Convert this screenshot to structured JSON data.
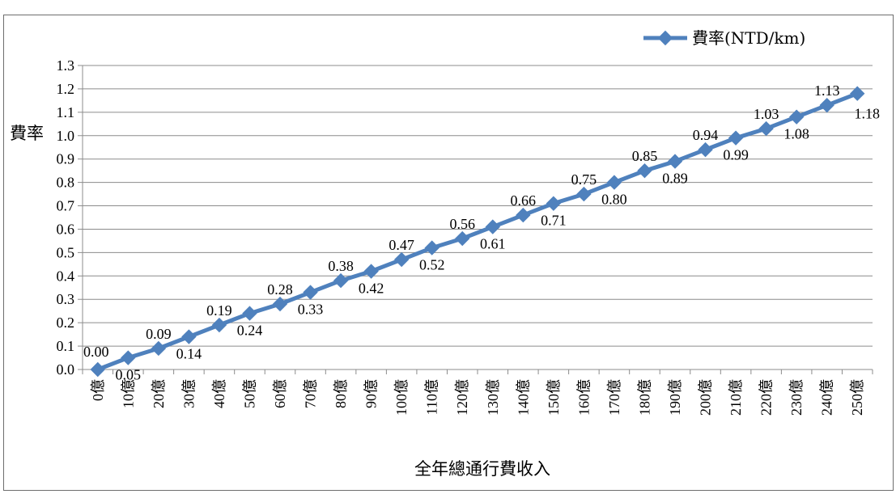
{
  "chart_data": {
    "type": "line",
    "title": "",
    "xlabel": "全年總通行費收入",
    "ylabel": "費率",
    "ylim": [
      0,
      1.3
    ],
    "ytick_labels": [
      "0.0",
      "0.1",
      "0.2",
      "0.3",
      "0.4",
      "0.5",
      "0.6",
      "0.7",
      "0.8",
      "0.9",
      "1.0",
      "1.1",
      "1.2",
      "1.3"
    ],
    "grid": true,
    "legend_position": "top-right",
    "categories": [
      "0億",
      "10億",
      "20億",
      "30億",
      "40億",
      "50億",
      "60億",
      "70億",
      "80億",
      "90億",
      "100億",
      "110億",
      "120億",
      "130億",
      "140億",
      "150億",
      "160億",
      "170億",
      "180億",
      "190億",
      "200億",
      "210億",
      "220億",
      "230億",
      "240億",
      "250億"
    ],
    "series": [
      {
        "name": "費率(NTD/km)",
        "color": "#4f81bd",
        "values": [
          0.0,
          0.05,
          0.09,
          0.14,
          0.19,
          0.24,
          0.28,
          0.33,
          0.38,
          0.42,
          0.47,
          0.52,
          0.56,
          0.61,
          0.66,
          0.71,
          0.75,
          0.8,
          0.85,
          0.89,
          0.94,
          0.99,
          1.03,
          1.08,
          1.13,
          1.18
        ],
        "data_labels": [
          "0.00",
          "0.05",
          "0.09",
          "0.14",
          "0.19",
          "0.24",
          "0.28",
          "0.33",
          "0.38",
          "0.42",
          "0.47",
          "0.52",
          "0.56",
          "0.61",
          "0.66",
          "0.71",
          "0.75",
          "0.80",
          "0.85",
          "0.89",
          "0.94",
          "0.99",
          "1.03",
          "1.08",
          "1.13",
          "1.18"
        ]
      }
    ]
  }
}
